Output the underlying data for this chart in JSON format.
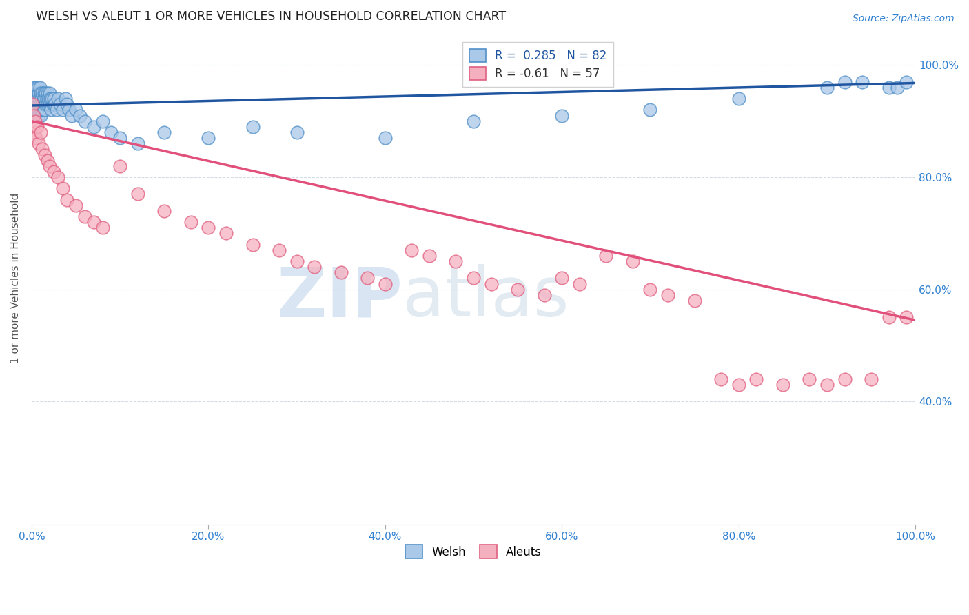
{
  "title": "WELSH VS ALEUT 1 OR MORE VEHICLES IN HOUSEHOLD CORRELATION CHART",
  "source": "Source: ZipAtlas.com",
  "ylabel_label": "1 or more Vehicles in Household",
  "welsh_R": 0.285,
  "welsh_N": 82,
  "aleut_R": -0.61,
  "aleut_N": 57,
  "welsh_color": "#aac8e8",
  "aleut_color": "#f5b0c0",
  "welsh_edge_color": "#5090c8",
  "aleut_edge_color": "#e06080",
  "welsh_line_color": "#2055a0",
  "aleut_line_color": "#e0507a",
  "watermark_zip": "ZIP",
  "watermark_atlas": "atlas",
  "watermark_color": "#c5d8ee",
  "background_color": "#ffffff",
  "x_ticks": [
    0.0,
    0.2,
    0.4,
    0.6,
    0.8,
    1.0
  ],
  "x_tick_labels": [
    "0.0%",
    "20.0%",
    "40.0%",
    "60.0%",
    "80.0%",
    "100.0%"
  ],
  "y_ticks": [
    0.4,
    0.6,
    0.8,
    1.0
  ],
  "y_tick_labels": [
    "40.0%",
    "60.0%",
    "80.0%",
    "100.0%"
  ],
  "ylim": [
    0.18,
    1.06
  ],
  "xlim": [
    0.0,
    1.0
  ],
  "welsh_trend_x": [
    0.0,
    1.0
  ],
  "welsh_trend_y": [
    0.928,
    0.968
  ],
  "aleut_trend_x": [
    0.0,
    1.0
  ],
  "aleut_trend_y": [
    0.9,
    0.545
  ],
  "welsh_x": [
    0.001,
    0.001,
    0.002,
    0.002,
    0.002,
    0.003,
    0.003,
    0.003,
    0.004,
    0.004,
    0.004,
    0.005,
    0.005,
    0.005,
    0.006,
    0.006,
    0.007,
    0.007,
    0.007,
    0.008,
    0.008,
    0.008,
    0.009,
    0.009,
    0.01,
    0.01,
    0.01,
    0.011,
    0.011,
    0.012,
    0.012,
    0.013,
    0.013,
    0.014,
    0.014,
    0.015,
    0.015,
    0.016,
    0.016,
    0.017,
    0.018,
    0.018,
    0.019,
    0.02,
    0.02,
    0.021,
    0.022,
    0.023,
    0.024,
    0.025,
    0.026,
    0.028,
    0.03,
    0.032,
    0.035,
    0.038,
    0.04,
    0.042,
    0.045,
    0.05,
    0.055,
    0.06,
    0.07,
    0.08,
    0.09,
    0.1,
    0.12,
    0.15,
    0.2,
    0.25,
    0.3,
    0.4,
    0.5,
    0.6,
    0.7,
    0.8,
    0.9,
    0.92,
    0.94,
    0.97,
    0.98,
    0.99
  ],
  "welsh_y": [
    0.94,
    0.92,
    0.95,
    0.93,
    0.91,
    0.96,
    0.94,
    0.92,
    0.95,
    0.93,
    0.91,
    0.96,
    0.94,
    0.92,
    0.95,
    0.93,
    0.96,
    0.94,
    0.92,
    0.95,
    0.93,
    0.91,
    0.96,
    0.94,
    0.95,
    0.93,
    0.91,
    0.94,
    0.92,
    0.95,
    0.93,
    0.94,
    0.92,
    0.95,
    0.93,
    0.94,
    0.92,
    0.95,
    0.93,
    0.94,
    0.95,
    0.93,
    0.94,
    0.95,
    0.93,
    0.94,
    0.92,
    0.94,
    0.93,
    0.94,
    0.93,
    0.92,
    0.94,
    0.93,
    0.92,
    0.94,
    0.93,
    0.92,
    0.91,
    0.92,
    0.91,
    0.9,
    0.89,
    0.9,
    0.88,
    0.87,
    0.86,
    0.88,
    0.87,
    0.89,
    0.88,
    0.87,
    0.9,
    0.91,
    0.92,
    0.94,
    0.96,
    0.97,
    0.97,
    0.96,
    0.96,
    0.97
  ],
  "aleut_x": [
    0.001,
    0.002,
    0.003,
    0.004,
    0.005,
    0.006,
    0.008,
    0.01,
    0.012,
    0.015,
    0.018,
    0.02,
    0.025,
    0.03,
    0.035,
    0.04,
    0.05,
    0.06,
    0.07,
    0.08,
    0.1,
    0.12,
    0.15,
    0.18,
    0.2,
    0.22,
    0.25,
    0.28,
    0.3,
    0.32,
    0.35,
    0.38,
    0.4,
    0.43,
    0.45,
    0.48,
    0.5,
    0.52,
    0.55,
    0.58,
    0.6,
    0.62,
    0.65,
    0.68,
    0.7,
    0.72,
    0.75,
    0.78,
    0.8,
    0.82,
    0.85,
    0.88,
    0.9,
    0.92,
    0.95,
    0.97,
    0.99
  ],
  "aleut_y": [
    0.93,
    0.91,
    0.88,
    0.9,
    0.87,
    0.89,
    0.86,
    0.88,
    0.85,
    0.84,
    0.83,
    0.82,
    0.81,
    0.8,
    0.78,
    0.76,
    0.75,
    0.73,
    0.72,
    0.71,
    0.82,
    0.77,
    0.74,
    0.72,
    0.71,
    0.7,
    0.68,
    0.67,
    0.65,
    0.64,
    0.63,
    0.62,
    0.61,
    0.67,
    0.66,
    0.65,
    0.62,
    0.61,
    0.6,
    0.59,
    0.62,
    0.61,
    0.66,
    0.65,
    0.6,
    0.59,
    0.58,
    0.44,
    0.43,
    0.44,
    0.43,
    0.44,
    0.43,
    0.44,
    0.44,
    0.55,
    0.55
  ]
}
